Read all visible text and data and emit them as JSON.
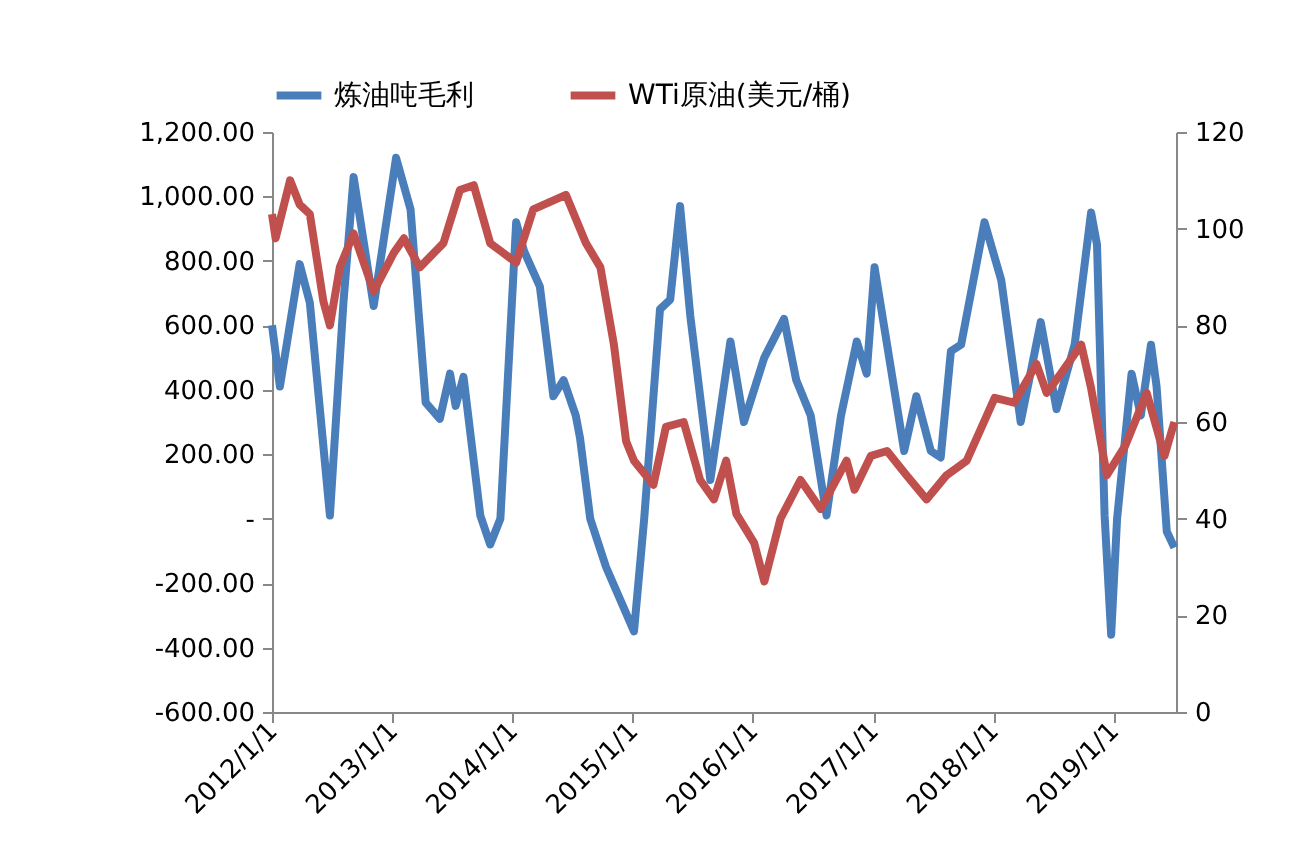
{
  "chart_data": {
    "type": "line",
    "legend": "top",
    "grid": false,
    "line_style": "solid",
    "marker": "none",
    "xlim": [
      "2012-01-01",
      "2019-07-10"
    ],
    "xticks": [
      {
        "value": "2012-01-01",
        "label": "2012/1/1"
      },
      {
        "value": "2013-01-01",
        "label": "2013/1/1"
      },
      {
        "value": "2014-01-01",
        "label": "2014/1/1"
      },
      {
        "value": "2015-01-01",
        "label": "2015/1/1"
      },
      {
        "value": "2016-01-01",
        "label": "2016/1/1"
      },
      {
        "value": "2017-01-01",
        "label": "2017/1/1"
      },
      {
        "value": "2018-01-01",
        "label": "2018/1/1"
      },
      {
        "value": "2019-01-01",
        "label": "2019/1/1"
      }
    ],
    "ylim": [
      -600,
      1200
    ],
    "yticks": [
      {
        "value": -600,
        "label": "-600.00"
      },
      {
        "value": -400,
        "label": "-400.00"
      },
      {
        "value": -200,
        "label": "-200.00"
      },
      {
        "value": 0,
        "label": "-"
      },
      {
        "value": 200,
        "label": "200.00"
      },
      {
        "value": 400,
        "label": "400.00"
      },
      {
        "value": 600,
        "label": "600.00"
      },
      {
        "value": 800,
        "label": "800.00"
      },
      {
        "value": 1000,
        "label": "1,000.00"
      },
      {
        "value": 1200,
        "label": "1,200.00"
      }
    ],
    "y2lim": [
      0,
      120
    ],
    "y2ticks": [
      0,
      20,
      40,
      60,
      80,
      100,
      120
    ],
    "series": [
      {
        "name": "炼油吨毛利",
        "color": "#4a7ebb",
        "x": [
          "2012-01-01",
          "2012-01-25",
          "2012-03-25",
          "2012-04-25",
          "2012-06-25",
          "2012-08-05",
          "2012-09-05",
          "2012-11-05",
          "2013-01-12",
          "2013-02-25",
          "2013-04-12",
          "2013-05-25",
          "2013-06-25",
          "2013-07-12",
          "2013-08-05",
          "2013-09-25",
          "2013-10-25",
          "2013-11-25",
          "2014-01-12",
          "2014-02-05",
          "2014-03-25",
          "2014-05-05",
          "2014-06-05",
          "2014-07-12",
          "2014-07-25",
          "2014-08-25",
          "2014-10-12",
          "2015-01-05",
          "2015-02-05",
          "2015-03-25",
          "2015-04-25",
          "2015-05-25",
          "2015-06-25",
          "2015-08-25",
          "2015-10-25",
          "2015-12-05",
          "2016-02-05",
          "2016-04-05",
          "2016-05-12",
          "2016-06-25",
          "2016-08-12",
          "2016-09-25",
          "2016-11-12",
          "2016-12-12",
          "2017-01-05",
          "2017-02-12",
          "2017-04-05",
          "2017-05-12",
          "2017-06-25",
          "2017-07-25",
          "2017-08-25",
          "2017-09-25",
          "2017-12-05",
          "2018-01-25",
          "2018-03-25",
          "2018-05-25",
          "2018-07-12",
          "2018-09-05",
          "2018-10-25",
          "2018-11-12",
          "2018-12-05",
          "2018-12-25",
          "2019-01-12",
          "2019-02-25",
          "2019-03-25",
          "2019-04-25",
          "2019-05-12",
          "2019-06-12",
          "2019-07-05"
        ],
        "values": [
          600,
          410,
          790,
          670,
          10,
          670,
          1060,
          660,
          1120,
          960,
          360,
          310,
          450,
          350,
          440,
          10,
          -80,
          0,
          920,
          830,
          720,
          380,
          430,
          320,
          250,
          0,
          -150,
          -350,
          0,
          650,
          680,
          970,
          630,
          120,
          550,
          300,
          500,
          620,
          430,
          320,
          10,
          320,
          550,
          450,
          780,
          540,
          210,
          380,
          210,
          190,
          520,
          540,
          920,
          740,
          300,
          610,
          340,
          540,
          950,
          850,
          10,
          -360,
          0,
          450,
          320,
          540,
          410,
          -40,
          -90
        ]
      },
      {
        "name": "WTi原油(美元/桶)",
        "color": "#c0504d",
        "axis": "y2",
        "x": [
          "2012-01-01",
          "2012-01-12",
          "2012-02-25",
          "2012-03-25",
          "2012-04-25",
          "2012-06-05",
          "2012-06-25",
          "2012-07-25",
          "2012-09-05",
          "2012-11-05",
          "2013-01-05",
          "2013-02-05",
          "2013-03-25",
          "2013-06-05",
          "2013-07-25",
          "2013-09-05",
          "2013-10-25",
          "2014-01-12",
          "2014-03-05",
          "2014-06-12",
          "2014-08-12",
          "2014-09-25",
          "2014-11-05",
          "2014-12-12",
          "2015-01-05",
          "2015-03-05",
          "2015-04-12",
          "2015-06-05",
          "2015-07-25",
          "2015-09-05",
          "2015-10-12",
          "2015-11-12",
          "2016-01-05",
          "2016-02-05",
          "2016-03-25",
          "2016-05-25",
          "2016-07-25",
          "2016-10-12",
          "2016-11-05",
          "2016-12-25",
          "2017-02-12",
          "2017-04-12",
          "2017-06-12",
          "2017-08-12",
          "2017-10-12",
          "2018-01-05",
          "2018-03-05",
          "2018-05-12",
          "2018-06-12",
          "2018-07-25",
          "2018-09-25",
          "2018-10-25",
          "2018-12-12",
          "2019-02-05",
          "2019-04-12",
          "2019-06-05",
          "2019-07-05"
        ],
        "values": [
          103,
          98,
          110,
          105,
          103,
          85,
          80,
          92,
          99,
          87,
          95,
          98,
          92,
          97,
          108,
          109,
          97,
          93,
          104,
          107,
          97,
          92,
          76,
          56,
          52,
          47,
          59,
          60,
          48,
          44,
          52,
          41,
          35,
          27,
          40,
          48,
          42,
          52,
          46,
          53,
          54,
          49,
          44,
          49,
          52,
          65,
          64,
          72,
          66,
          70,
          76,
          67,
          49,
          55,
          66,
          53,
          60
        ]
      }
    ]
  }
}
